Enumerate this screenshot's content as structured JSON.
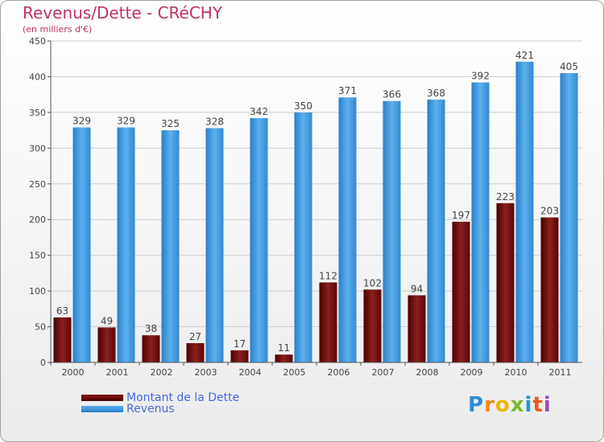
{
  "title": "Revenus/Dette - CRéCHY",
  "subtitle": "(en milliers d'€)",
  "logo": {
    "text": "Proxiti",
    "letters": [
      "P",
      "r",
      "o",
      "x",
      "i",
      "t",
      "i"
    ],
    "colors": [
      "#2c8fd6",
      "#f08a1c",
      "#e8b800",
      "#7ab82c",
      "#1a9ad6",
      "#e85a1c",
      "#9c4cc0"
    ]
  },
  "colors": {
    "dette": "#6e0b0b",
    "revenus": "#3d9ae0",
    "title": "#c0306a",
    "legend_text": "#4a66e0"
  },
  "chart_data": {
    "type": "bar",
    "title": "Revenus/Dette - CRéCHY",
    "subtitle": "(en milliers d'€)",
    "xlabel": "",
    "ylabel": "",
    "categories": [
      "2000",
      "2001",
      "2002",
      "2003",
      "2004",
      "2005",
      "2006",
      "2007",
      "2008",
      "2009",
      "2010",
      "2011"
    ],
    "series": [
      {
        "name": "Montant de la Dette",
        "values": [
          63,
          49,
          38,
          27,
          17,
          11,
          112,
          102,
          94,
          197,
          223,
          203
        ],
        "labels": [
          "63",
          "49",
          "38",
          "27",
          "17",
          "11",
          "112",
          "102",
          "94",
          "197",
          "223",
          "203"
        ]
      },
      {
        "name": "Revenus",
        "values": [
          329,
          329,
          325,
          328,
          342,
          350,
          371,
          366,
          368,
          392,
          421,
          405
        ],
        "labels": [
          "329",
          "329",
          "325",
          "328",
          "342",
          "350",
          "371",
          "366",
          "368",
          "392",
          "421",
          "405"
        ]
      }
    ],
    "ylim": [
      0,
      450
    ],
    "yticks": [
      0,
      50,
      100,
      150,
      200,
      250,
      300,
      350,
      400,
      450
    ],
    "ytick_labels": [
      "0",
      "50",
      "100",
      "150",
      "200",
      "250",
      "300",
      "350",
      "400",
      "450"
    ],
    "grid": true,
    "legend": "bottom-left"
  }
}
